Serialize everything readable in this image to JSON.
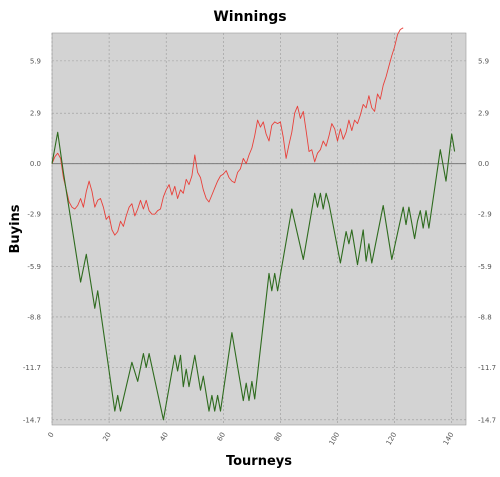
{
  "chart_data": {
    "type": "line",
    "title": "Winnings",
    "xlabel": "Tourneys",
    "ylabel": "Buyins",
    "xlim": [
      0,
      145
    ],
    "ylim": [
      -15,
      7.5
    ],
    "grid": true,
    "x_ticks": [
      "0",
      "20",
      "40",
      "60",
      "80",
      "100",
      "120",
      "140"
    ],
    "y_ticks": [
      "5.9",
      "2.9",
      "0.0",
      "-2.9",
      "-5.9",
      "-8.8",
      "-11.7",
      "-14.7"
    ],
    "reference_line": 0,
    "series": [
      {
        "color": "#e8403a",
        "points": [
          [
            0,
            0
          ],
          [
            1,
            0.4
          ],
          [
            2,
            0.6
          ],
          [
            3,
            0.3
          ],
          [
            4,
            -0.8
          ],
          [
            5,
            -1.5
          ],
          [
            6,
            -2.2
          ],
          [
            7,
            -2.5
          ],
          [
            8,
            -2.6
          ],
          [
            9,
            -2.4
          ],
          [
            10,
            -2.0
          ],
          [
            11,
            -2.5
          ],
          [
            12,
            -1.6
          ],
          [
            13,
            -1.0
          ],
          [
            14,
            -1.6
          ],
          [
            15,
            -2.5
          ],
          [
            16,
            -2.1
          ],
          [
            17,
            -2.0
          ],
          [
            18,
            -2.5
          ],
          [
            19,
            -3.2
          ],
          [
            20,
            -3.0
          ],
          [
            21,
            -3.8
          ],
          [
            22,
            -4.1
          ],
          [
            23,
            -3.9
          ],
          [
            24,
            -3.3
          ],
          [
            25,
            -3.6
          ],
          [
            26,
            -3.0
          ],
          [
            27,
            -2.5
          ],
          [
            28,
            -2.3
          ],
          [
            29,
            -3.0
          ],
          [
            30,
            -2.6
          ],
          [
            31,
            -2.1
          ],
          [
            32,
            -2.6
          ],
          [
            33,
            -2.1
          ],
          [
            34,
            -2.7
          ],
          [
            35,
            -2.9
          ],
          [
            36,
            -2.9
          ],
          [
            37,
            -2.7
          ],
          [
            38,
            -2.6
          ],
          [
            39,
            -1.9
          ],
          [
            40,
            -1.5
          ],
          [
            41,
            -1.2
          ],
          [
            42,
            -1.8
          ],
          [
            43,
            -1.3
          ],
          [
            44,
            -2.0
          ],
          [
            45,
            -1.5
          ],
          [
            46,
            -1.7
          ],
          [
            47,
            -0.9
          ],
          [
            48,
            -1.2
          ],
          [
            49,
            -0.7
          ],
          [
            50,
            0.5
          ],
          [
            51,
            -0.5
          ],
          [
            52,
            -0.8
          ],
          [
            53,
            -1.5
          ],
          [
            54,
            -2.0
          ],
          [
            55,
            -2.2
          ],
          [
            56,
            -1.8
          ],
          [
            57,
            -1.4
          ],
          [
            58,
            -1.0
          ],
          [
            59,
            -0.7
          ],
          [
            60,
            -0.6
          ],
          [
            61,
            -0.4
          ],
          [
            62,
            -0.8
          ],
          [
            63,
            -1.0
          ],
          [
            64,
            -1.1
          ],
          [
            65,
            -0.5
          ],
          [
            66,
            -0.3
          ],
          [
            67,
            0.3
          ],
          [
            68,
            0.0
          ],
          [
            69,
            0.5
          ],
          [
            70,
            0.9
          ],
          [
            71,
            1.6
          ],
          [
            72,
            2.5
          ],
          [
            73,
            2.1
          ],
          [
            74,
            2.4
          ],
          [
            75,
            1.7
          ],
          [
            76,
            1.3
          ],
          [
            77,
            2.2
          ],
          [
            78,
            2.4
          ],
          [
            79,
            2.3
          ],
          [
            80,
            2.4
          ],
          [
            81,
            1.5
          ],
          [
            82,
            0.3
          ],
          [
            83,
            1.1
          ],
          [
            84,
            1.8
          ],
          [
            85,
            2.9
          ],
          [
            86,
            3.3
          ],
          [
            87,
            2.6
          ],
          [
            88,
            3.0
          ],
          [
            89,
            1.9
          ],
          [
            90,
            0.7
          ],
          [
            91,
            0.8
          ],
          [
            92,
            0.1
          ],
          [
            93,
            0.6
          ],
          [
            94,
            0.8
          ],
          [
            95,
            1.3
          ],
          [
            96,
            1.0
          ],
          [
            97,
            1.6
          ],
          [
            98,
            2.3
          ],
          [
            99,
            2.0
          ],
          [
            100,
            1.3
          ],
          [
            101,
            2.0
          ],
          [
            102,
            1.4
          ],
          [
            103,
            1.8
          ],
          [
            104,
            2.5
          ],
          [
            105,
            1.9
          ],
          [
            106,
            2.5
          ],
          [
            107,
            2.3
          ],
          [
            108,
            2.8
          ],
          [
            109,
            3.4
          ],
          [
            110,
            3.2
          ],
          [
            111,
            3.9
          ],
          [
            112,
            3.2
          ],
          [
            113,
            3.0
          ],
          [
            114,
            4.0
          ],
          [
            115,
            3.7
          ],
          [
            116,
            4.5
          ],
          [
            117,
            5.0
          ],
          [
            118,
            5.6
          ],
          [
            119,
            6.2
          ],
          [
            120,
            6.7
          ],
          [
            121,
            7.4
          ],
          [
            122,
            7.7
          ],
          [
            123,
            7.8
          ]
        ]
      },
      {
        "color": "#2e6b1e",
        "points": [
          [
            0,
            0
          ],
          [
            2,
            1.8
          ],
          [
            4,
            -0.5
          ],
          [
            10,
            -6.8
          ],
          [
            12,
            -5.2
          ],
          [
            15,
            -8.3
          ],
          [
            16,
            -7.3
          ],
          [
            22,
            -14.2
          ],
          [
            23,
            -13.3
          ],
          [
            24,
            -14.2
          ],
          [
            28,
            -11.4
          ],
          [
            30,
            -12.5
          ],
          [
            32,
            -10.9
          ],
          [
            33,
            -11.7
          ],
          [
            34,
            -10.9
          ],
          [
            39,
            -14.7
          ],
          [
            43,
            -11.0
          ],
          [
            44,
            -11.9
          ],
          [
            45,
            -11.0
          ],
          [
            46,
            -12.8
          ],
          [
            47,
            -11.8
          ],
          [
            48,
            -12.8
          ],
          [
            50,
            -11.0
          ],
          [
            52,
            -13.0
          ],
          [
            53,
            -12.2
          ],
          [
            55,
            -14.2
          ],
          [
            56,
            -13.3
          ],
          [
            57,
            -14.2
          ],
          [
            58,
            -13.3
          ],
          [
            59,
            -14.2
          ],
          [
            63,
            -9.7
          ],
          [
            67,
            -13.6
          ],
          [
            68,
            -12.6
          ],
          [
            69,
            -13.6
          ],
          [
            70,
            -12.5
          ],
          [
            71,
            -13.5
          ],
          [
            76,
            -6.3
          ],
          [
            77,
            -7.3
          ],
          [
            78,
            -6.3
          ],
          [
            79,
            -7.3
          ],
          [
            84,
            -2.6
          ],
          [
            88,
            -5.5
          ],
          [
            92,
            -1.7
          ],
          [
            93,
            -2.5
          ],
          [
            94,
            -1.7
          ],
          [
            95,
            -2.6
          ],
          [
            96,
            -1.7
          ],
          [
            97,
            -2.3
          ],
          [
            101,
            -5.7
          ],
          [
            103,
            -3.9
          ],
          [
            104,
            -4.6
          ],
          [
            105,
            -3.8
          ],
          [
            107,
            -5.8
          ],
          [
            109,
            -3.8
          ],
          [
            110,
            -5.6
          ],
          [
            111,
            -4.6
          ],
          [
            112,
            -5.7
          ],
          [
            116,
            -2.4
          ],
          [
            119,
            -5.5
          ],
          [
            123,
            -2.5
          ],
          [
            124,
            -3.5
          ],
          [
            125,
            -2.5
          ],
          [
            127,
            -4.3
          ],
          [
            128,
            -3.3
          ],
          [
            129,
            -2.7
          ],
          [
            130,
            -3.7
          ],
          [
            131,
            -2.7
          ],
          [
            132,
            -3.7
          ],
          [
            136,
            0.8
          ],
          [
            138,
            -1.0
          ],
          [
            140,
            1.7
          ],
          [
            141,
            0.7
          ]
        ]
      }
    ]
  }
}
